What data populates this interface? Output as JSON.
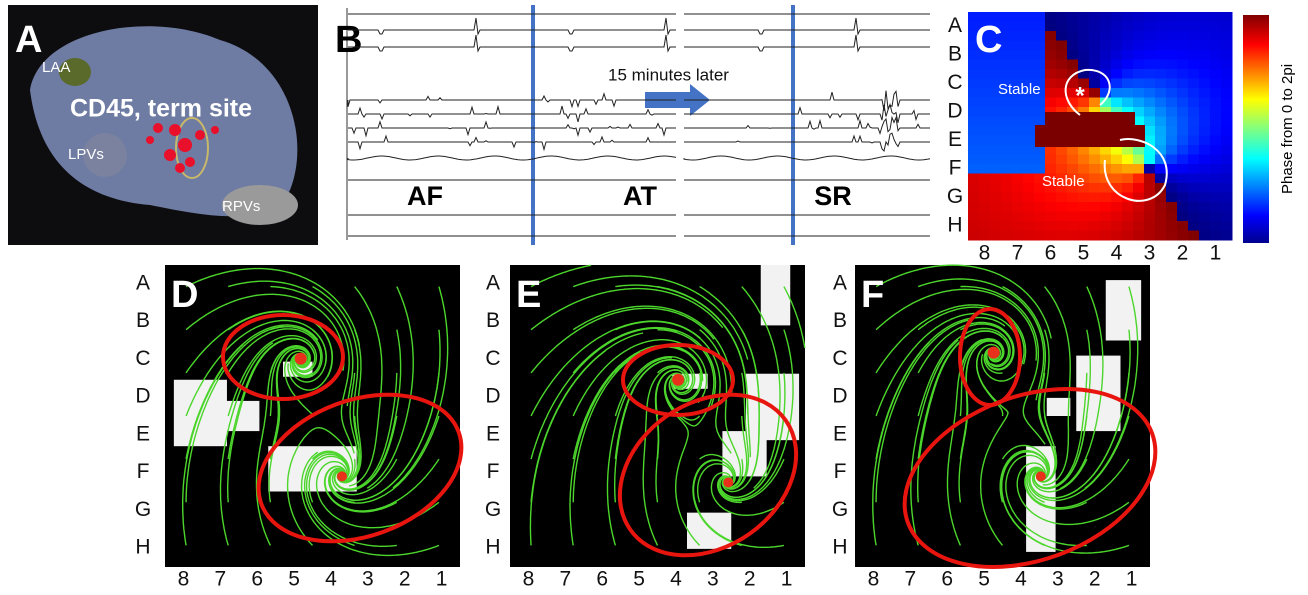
{
  "panel_a": {
    "letter": "A",
    "labels": {
      "laa": "LAA",
      "lpvs": "LPVs",
      "site": "CD45, term site",
      "rpvs": "RPVs"
    }
  },
  "panel_b": {
    "letter": "B",
    "note": "15 minutes later",
    "rhythms": [
      "AF",
      "AT",
      "SR"
    ]
  },
  "panel_c": {
    "letter": "C",
    "annotations": [
      "Stable",
      "Stable"
    ],
    "colorbar_label": "Phase from 0 to 2pi",
    "rows": [
      "A",
      "B",
      "C",
      "D",
      "E",
      "F",
      "G",
      "H"
    ],
    "cols": [
      "8",
      "7",
      "6",
      "5",
      "4",
      "3",
      "2",
      "1"
    ]
  },
  "panel_d": {
    "letter": "D",
    "rows": [
      "A",
      "B",
      "C",
      "D",
      "E",
      "F",
      "G",
      "H"
    ],
    "cols": [
      "8",
      "7",
      "6",
      "5",
      "4",
      "3",
      "2",
      "1"
    ]
  },
  "panel_e": {
    "letter": "E",
    "rows": [
      "A",
      "B",
      "C",
      "D",
      "E",
      "F",
      "G",
      "H"
    ],
    "cols": [
      "8",
      "7",
      "6",
      "5",
      "4",
      "3",
      "2",
      "1"
    ]
  },
  "panel_f": {
    "letter": "F",
    "rows": [
      "A",
      "B",
      "C",
      "D",
      "E",
      "F",
      "G",
      "H"
    ],
    "cols": [
      "8",
      "7",
      "6",
      "5",
      "4",
      "3",
      "2",
      "1"
    ]
  }
}
